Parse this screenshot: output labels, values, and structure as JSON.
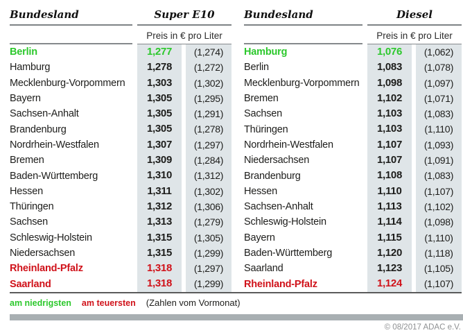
{
  "colors": {
    "lowest_green": "#2cc82c",
    "highest_red": "#d0121a",
    "column_bg": "#dfe5e8",
    "bottom_bar": "#a8afb2"
  },
  "legend": {
    "lowest_label": "am niedrigsten",
    "highest_label": "am teuersten",
    "note": "(Zahlen vom Vormonat)"
  },
  "footer": "© 08/2017 ADAC e.V.",
  "chart_data": [
    {
      "type": "table",
      "name_header": "Bundesland",
      "fuel_header": "Super E10",
      "unit_header": "Preis in € pro Liter",
      "rows": [
        {
          "state": "Berlin",
          "price": "1,277",
          "prev": "(1,274)",
          "mark": "lowest"
        },
        {
          "state": "Hamburg",
          "price": "1,278",
          "prev": "(1,272)",
          "mark": ""
        },
        {
          "state": "Mecklenburg-Vorpommern",
          "price": "1,303",
          "prev": "(1,302)",
          "mark": ""
        },
        {
          "state": "Bayern",
          "price": "1,305",
          "prev": "(1,295)",
          "mark": ""
        },
        {
          "state": "Sachsen-Anhalt",
          "price": "1,305",
          "prev": "(1,291)",
          "mark": ""
        },
        {
          "state": "Brandenburg",
          "price": "1,305",
          "prev": "(1,278)",
          "mark": ""
        },
        {
          "state": "Nordrhein-Westfalen",
          "price": "1,307",
          "prev": "(1,297)",
          "mark": ""
        },
        {
          "state": "Bremen",
          "price": "1,309",
          "prev": "(1,284)",
          "mark": ""
        },
        {
          "state": "Baden-Württemberg",
          "price": "1,310",
          "prev": "(1,312)",
          "mark": ""
        },
        {
          "state": "Hessen",
          "price": "1,311",
          "prev": "(1,302)",
          "mark": ""
        },
        {
          "state": "Thüringen",
          "price": "1,312",
          "prev": "(1,306)",
          "mark": ""
        },
        {
          "state": "Sachsen",
          "price": "1,313",
          "prev": "(1,279)",
          "mark": ""
        },
        {
          "state": "Schleswig-Holstein",
          "price": "1,315",
          "prev": "(1,305)",
          "mark": ""
        },
        {
          "state": "Niedersachsen",
          "price": "1,315",
          "prev": "(1,299)",
          "mark": ""
        },
        {
          "state": "Rheinland-Pfalz",
          "price": "1,318",
          "prev": "(1,297)",
          "mark": "highest"
        },
        {
          "state": "Saarland",
          "price": "1,318",
          "prev": "(1,299)",
          "mark": "highest"
        }
      ]
    },
    {
      "type": "table",
      "name_header": "Bundesland",
      "fuel_header": "Diesel",
      "unit_header": "Preis in € pro Liter",
      "rows": [
        {
          "state": "Hamburg",
          "price": "1,076",
          "prev": "(1,062)",
          "mark": "lowest"
        },
        {
          "state": "Berlin",
          "price": "1,083",
          "prev": "(1,078)",
          "mark": ""
        },
        {
          "state": "Mecklenburg-Vorpommern",
          "price": "1,098",
          "prev": "(1,097)",
          "mark": ""
        },
        {
          "state": "Bremen",
          "price": "1,102",
          "prev": "(1,071)",
          "mark": ""
        },
        {
          "state": "Sachsen",
          "price": "1,103",
          "prev": "(1,083)",
          "mark": ""
        },
        {
          "state": "Thüringen",
          "price": "1,103",
          "prev": "(1,110)",
          "mark": ""
        },
        {
          "state": "Nordrhein-Westfalen",
          "price": "1,107",
          "prev": "(1,093)",
          "mark": ""
        },
        {
          "state": "Niedersachsen",
          "price": "1,107",
          "prev": "(1,091)",
          "mark": ""
        },
        {
          "state": "Brandenburg",
          "price": "1,108",
          "prev": "(1,083)",
          "mark": ""
        },
        {
          "state": "Hessen",
          "price": "1,110",
          "prev": "(1,107)",
          "mark": ""
        },
        {
          "state": "Sachsen-Anhalt",
          "price": "1,113",
          "prev": "(1,102)",
          "mark": ""
        },
        {
          "state": "Schleswig-Holstein",
          "price": "1,114",
          "prev": "(1,098)",
          "mark": ""
        },
        {
          "state": "Bayern",
          "price": "1,115",
          "prev": "(1,110)",
          "mark": ""
        },
        {
          "state": "Baden-Württemberg",
          "price": "1,120",
          "prev": "(1,118)",
          "mark": ""
        },
        {
          "state": "Saarland",
          "price": "1,123",
          "prev": "(1,105)",
          "mark": ""
        },
        {
          "state": "Rheinland-Pfalz",
          "price": "1,124",
          "prev": "(1,107)",
          "mark": "highest"
        }
      ]
    }
  ]
}
